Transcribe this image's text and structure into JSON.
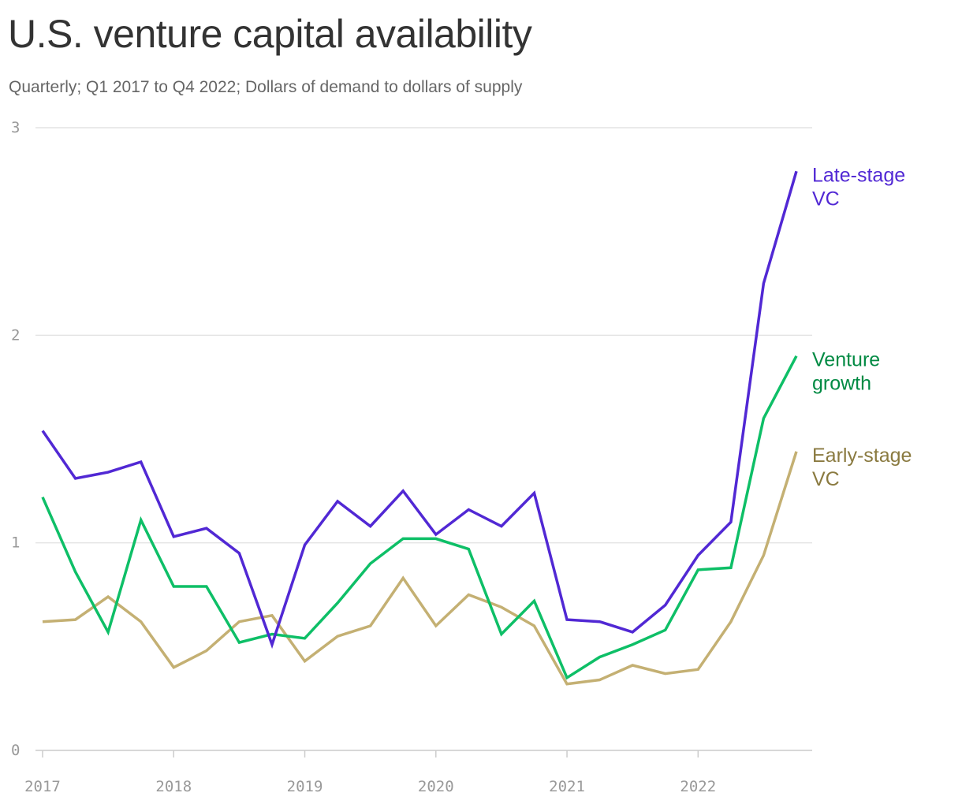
{
  "header": {
    "title": "U.S. venture capital availability",
    "subtitle": "Quarterly; Q1 2017 to Q4 2022; Dollars of demand to dollars of supply"
  },
  "chart_data": {
    "type": "line",
    "title": "U.S. venture capital availability",
    "subtitle": "Quarterly; Q1 2017 to Q4 2022; Dollars of demand to dollars of supply",
    "xlabel": "",
    "ylabel": "",
    "ylim": [
      0,
      3
    ],
    "xlim": [
      2017,
      2022.75
    ],
    "yticks": [
      0,
      1,
      2,
      3
    ],
    "xticks": [
      2017,
      2018,
      2019,
      2020,
      2021,
      2022
    ],
    "grid": "horizontal",
    "legend": "direct labels at right end of lines",
    "x": [
      "Q1 2017",
      "Q2 2017",
      "Q3 2017",
      "Q4 2017",
      "Q1 2018",
      "Q2 2018",
      "Q3 2018",
      "Q4 2018",
      "Q1 2019",
      "Q2 2019",
      "Q3 2019",
      "Q4 2019",
      "Q1 2020",
      "Q2 2020",
      "Q3 2020",
      "Q4 2020",
      "Q1 2021",
      "Q2 2021",
      "Q3 2021",
      "Q4 2021",
      "Q1 2022",
      "Q2 2022",
      "Q3 2022",
      "Q4 2022"
    ],
    "series": [
      {
        "name": "Late-stage VC",
        "label_lines": [
          "Late-stage",
          "VC"
        ],
        "color": "#5128d4",
        "label_color": "#5128d4",
        "values": [
          1.54,
          1.31,
          1.34,
          1.39,
          1.03,
          1.07,
          0.95,
          0.51,
          0.99,
          1.2,
          1.08,
          1.25,
          1.04,
          1.16,
          1.08,
          1.24,
          0.63,
          0.62,
          0.57,
          0.7,
          0.94,
          1.1,
          2.25,
          2.79
        ]
      },
      {
        "name": "Venture growth",
        "label_lines": [
          "Venture",
          "growth"
        ],
        "color": "#0ebf67",
        "label_color": "#008a43",
        "values": [
          1.22,
          0.86,
          0.57,
          1.11,
          0.79,
          0.79,
          0.52,
          0.56,
          0.54,
          0.71,
          0.9,
          1.02,
          1.02,
          0.97,
          0.56,
          0.72,
          0.35,
          0.45,
          0.51,
          0.58,
          0.87,
          0.88,
          1.6,
          1.9
        ]
      },
      {
        "name": "Early-stage VC",
        "label_lines": [
          "Early-stage",
          "VC"
        ],
        "color": "#c4b073",
        "label_color": "#8a7a40",
        "values": [
          0.62,
          0.63,
          0.74,
          0.62,
          0.4,
          0.48,
          0.62,
          0.65,
          0.43,
          0.55,
          0.6,
          0.83,
          0.6,
          0.75,
          0.69,
          0.6,
          0.32,
          0.34,
          0.41,
          0.37,
          0.39,
          0.62,
          0.94,
          1.44
        ]
      }
    ]
  }
}
